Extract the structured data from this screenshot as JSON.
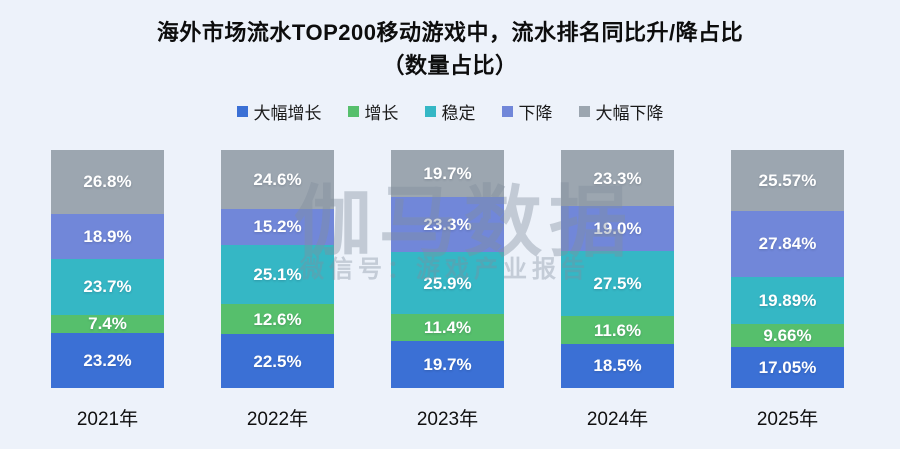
{
  "title": {
    "line1": "海外市场流水TOP200移动游戏中，流水排名同比升/降占比",
    "line2": "（数量占比）"
  },
  "watermark": {
    "line1": "伽马数据",
    "line2": "微信号：游戏产业报告"
  },
  "chart_data": {
    "type": "bar",
    "stacked": true,
    "percent": true,
    "title": "海外市场流水TOP200移动游戏中，流水排名同比升/降占比（数量占比）",
    "categories": [
      "2021年",
      "2022年",
      "2023年",
      "2024年",
      "2025年"
    ],
    "series": [
      {
        "name": "大幅增长",
        "color": "#3b70d5",
        "values": [
          23.2,
          22.5,
          19.7,
          18.5,
          17.05
        ],
        "labels": [
          "23.2%",
          "22.5%",
          "19.7%",
          "18.5%",
          "17.05%"
        ]
      },
      {
        "name": "增长",
        "color": "#56bf6c",
        "values": [
          7.4,
          12.6,
          11.4,
          11.6,
          9.66
        ],
        "labels": [
          "7.4%",
          "12.6%",
          "11.4%",
          "11.6%",
          "9.66%"
        ]
      },
      {
        "name": "稳定",
        "color": "#35b7c5",
        "values": [
          23.7,
          25.1,
          25.9,
          27.5,
          19.89
        ],
        "labels": [
          "23.7%",
          "25.1%",
          "25.9%",
          "27.5%",
          "19.89%"
        ]
      },
      {
        "name": "下降",
        "color": "#7187d9",
        "values": [
          18.9,
          15.2,
          23.3,
          19.0,
          27.84
        ],
        "labels": [
          "18.9%",
          "15.2%",
          "23.3%",
          "19.0%",
          "27.84%"
        ]
      },
      {
        "name": "大幅下降",
        "color": "#9ca6b0",
        "values": [
          26.8,
          24.6,
          19.7,
          23.3,
          25.57
        ],
        "labels": [
          "26.8%",
          "24.6%",
          "19.7%",
          "23.3%",
          "25.57%"
        ]
      }
    ],
    "ylim": [
      0,
      100
    ],
    "legend_position": "top",
    "grid": false,
    "stack_order": "bottom-to-top"
  }
}
